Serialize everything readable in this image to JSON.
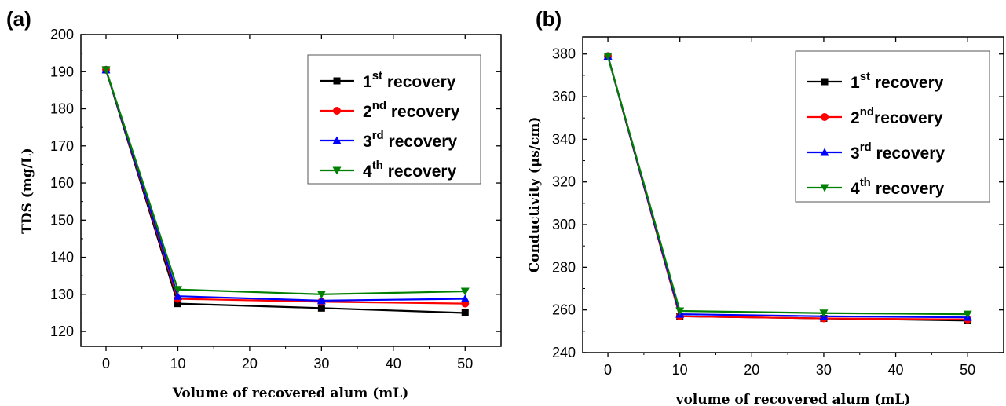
{
  "chart_data": [
    {
      "panel_label": "(a)",
      "type": "line",
      "xlabel": "Volume of recovered alum (mL)",
      "ylabel": "TDS (mg/L)",
      "x": [
        0,
        10,
        30,
        50
      ],
      "x_ticks": [
        0,
        10,
        20,
        30,
        40,
        50
      ],
      "y_ticks": [
        120,
        130,
        140,
        150,
        160,
        170,
        180,
        190,
        200
      ],
      "xlim": [
        -3.5,
        55
      ],
      "ylim": [
        116,
        200
      ],
      "grid": false,
      "legend_position": "top-right",
      "series": [
        {
          "name_num": "1",
          "name_sup": "st",
          "name_rest": " recovery",
          "color": "#000000",
          "marker": "square",
          "values": [
            190.5,
            127.5,
            126.3,
            125.0
          ]
        },
        {
          "name_num": "2",
          "name_sup": "nd",
          "name_rest": " recovery",
          "color": "#ff0000",
          "marker": "circle",
          "values": [
            190.5,
            128.8,
            128.0,
            127.5
          ]
        },
        {
          "name_num": "3",
          "name_sup": "rd",
          "name_rest": " recovery",
          "color": "#0000ff",
          "marker": "triangle-up",
          "values": [
            190.5,
            129.5,
            128.3,
            128.8
          ]
        },
        {
          "name_num": "4",
          "name_sup": "th",
          "name_rest": " recovery",
          "color": "#008000",
          "marker": "triangle-down",
          "values": [
            190.5,
            131.3,
            130.0,
            130.8
          ]
        }
      ]
    },
    {
      "panel_label": "(b)",
      "type": "line",
      "xlabel": "volume of recovered alum (mL)",
      "ylabel": "Conductivity (μs/cm)",
      "x": [
        0,
        10,
        30,
        50
      ],
      "x_ticks": [
        0,
        10,
        20,
        30,
        40,
        50
      ],
      "y_ticks": [
        240,
        260,
        280,
        300,
        320,
        340,
        360,
        380
      ],
      "xlim": [
        -3.5,
        55
      ],
      "ylim": [
        240,
        388
      ],
      "grid": false,
      "legend_position": "top-right",
      "series": [
        {
          "name_num": "1",
          "name_sup": "st",
          "name_rest": " recovery",
          "color": "#000000",
          "marker": "square",
          "values": [
            379,
            257,
            256,
            255
          ]
        },
        {
          "name_num": "2",
          "name_sup": "nd",
          "name_rest": "recovery",
          "color": "#ff0000",
          "marker": "circle",
          "values": [
            379,
            257,
            256,
            255.5
          ]
        },
        {
          "name_num": "3",
          "name_sup": "rd",
          "name_rest": " recovery",
          "color": "#0000ff",
          "marker": "triangle-up",
          "values": [
            379,
            258,
            257,
            256.5
          ]
        },
        {
          "name_num": "4",
          "name_sup": "th",
          "name_rest": " recovery",
          "color": "#008000",
          "marker": "triangle-down",
          "values": [
            379,
            259.5,
            258.5,
            258
          ]
        }
      ]
    }
  ]
}
